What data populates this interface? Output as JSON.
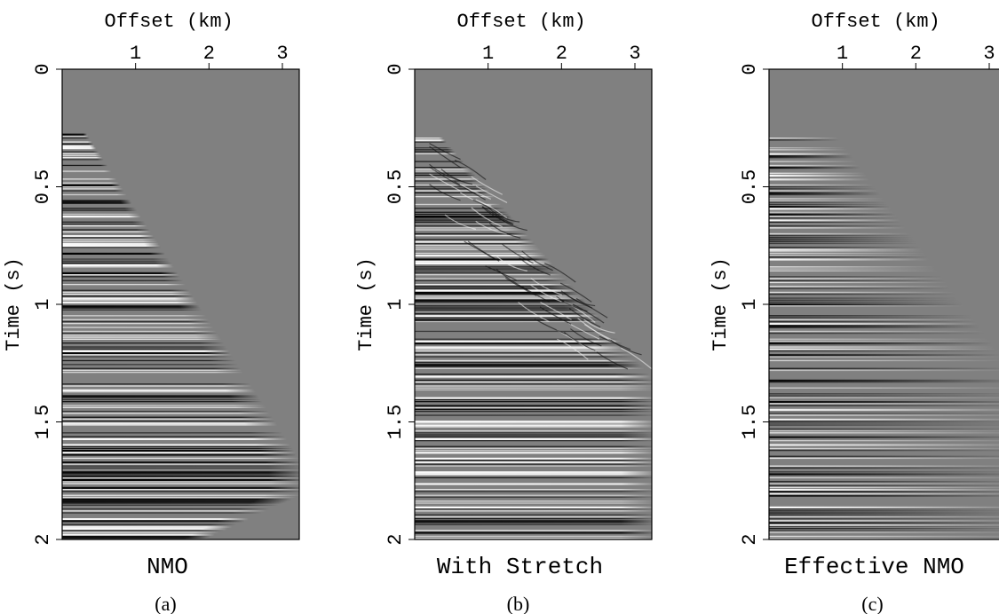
{
  "chart_data": [
    {
      "type": "image",
      "xlabel": "Offset (km)",
      "ylabel": "Time (s)",
      "title": "NMO",
      "caption": "(a)",
      "xlim": [
        0,
        3.23
      ],
      "ylim": [
        0,
        2
      ],
      "yreverse": true,
      "xticks": [
        1,
        2,
        3
      ],
      "yticks": [
        0,
        0.5,
        1,
        1.5,
        2
      ]
    },
    {
      "type": "image",
      "xlabel": "Offset (km)",
      "ylabel": "Time (s)",
      "title": "With Stretch",
      "caption": "(b)",
      "xlim": [
        0,
        3.23
      ],
      "ylim": [
        0,
        2
      ],
      "yreverse": true,
      "xticks": [
        1,
        2,
        3
      ],
      "yticks": [
        0,
        0.5,
        1,
        1.5,
        2
      ]
    },
    {
      "type": "image",
      "xlabel": "Offset (km)",
      "ylabel": "Time (s)",
      "title": "Effective NMO",
      "caption": "(c)",
      "xlim": [
        0,
        3.23
      ],
      "ylim": [
        0,
        2
      ],
      "yreverse": true,
      "xticks": [
        1,
        2,
        3
      ],
      "yticks": [
        0,
        0.5,
        1,
        1.5,
        2
      ]
    }
  ]
}
